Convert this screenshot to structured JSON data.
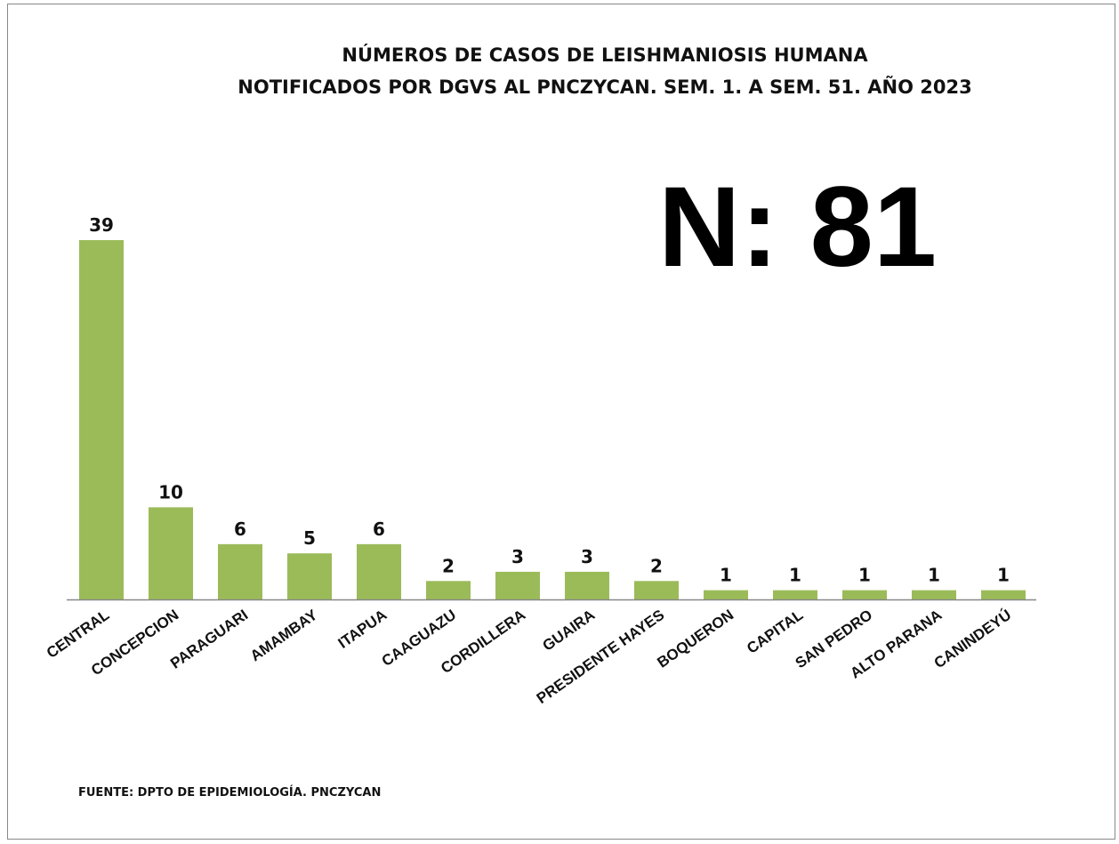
{
  "header": {
    "title_line1": "NÚMEROS DE CASOS DE LEISHMANIOSIS HUMANA",
    "title_line2": "NOTIFICADOS POR DGVS AL PNCZYCAN. SEM. 1. A SEM. 51. AÑO 2023"
  },
  "total_label": "N: 81",
  "source": "FUENTE: DPTO DE EPIDEMIOLOGÍA. PNCZYCAN",
  "colors": {
    "bar": "#9BBB59",
    "axis": "#888888",
    "text": "#111111"
  },
  "chart_data": {
    "type": "bar",
    "title": "NÚMEROS DE CASOS DE LEISHMANIOSIS HUMANA NOTIFICADOS POR DGVS AL PNCZYCAN. SEM. 1. A SEM. 51. AÑO 2023",
    "xlabel": "",
    "ylabel": "",
    "categories": [
      "CENTRAL",
      "CONCEPCION",
      "PARAGUARI",
      "AMAMBAY",
      "ITAPUA",
      "CAAGUAZU",
      "CORDILLERA",
      "GUAIRA",
      "PRESIDENTE HAYES",
      "BOQUERON",
      "CAPITAL",
      "SAN PEDRO",
      "ALTO PARANA",
      "CANINDEYÚ"
    ],
    "values": [
      39,
      10,
      6,
      5,
      6,
      2,
      3,
      3,
      2,
      1,
      1,
      1,
      1,
      1
    ],
    "data_labels": true,
    "ylim": [
      0,
      39
    ],
    "grid": false,
    "legend": "none"
  }
}
